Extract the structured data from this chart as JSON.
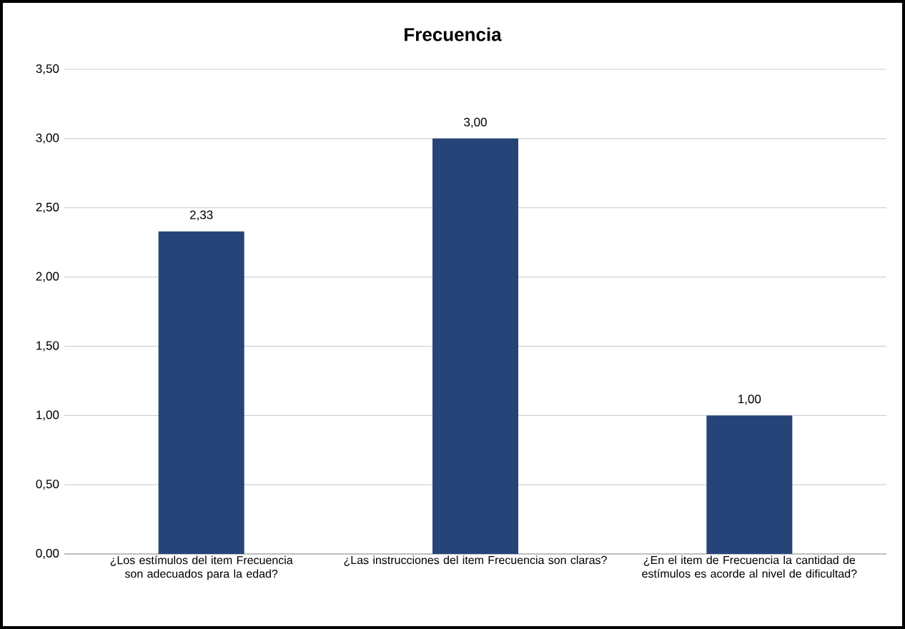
{
  "chart_data": {
    "type": "bar",
    "title": "Frecuencia",
    "categories": [
      "¿Los estímulos del item Frecuencia son adecuados para la edad?",
      "¿Las instrucciones del item Frecuencia son claras?",
      "¿En el item de Frecuencia la cantidad de estímulos es acorde al nivel de dificultad?"
    ],
    "values": [
      2.33,
      3.0,
      1.0
    ],
    "value_labels": [
      "2,33",
      "3,00",
      "1,00"
    ],
    "color": "#264478",
    "ylim": [
      0,
      3.5
    ],
    "yticks": [
      {
        "value": 0,
        "label": "0,00"
      },
      {
        "value": 0.5,
        "label": "0,50"
      },
      {
        "value": 1,
        "label": "1,00"
      },
      {
        "value": 1.5,
        "label": "1,50"
      },
      {
        "value": 2,
        "label": "2,00"
      },
      {
        "value": 2.5,
        "label": "2,50"
      },
      {
        "value": 3,
        "label": "3,00"
      },
      {
        "value": 3.5,
        "label": "3,50"
      }
    ],
    "grid": "y"
  }
}
